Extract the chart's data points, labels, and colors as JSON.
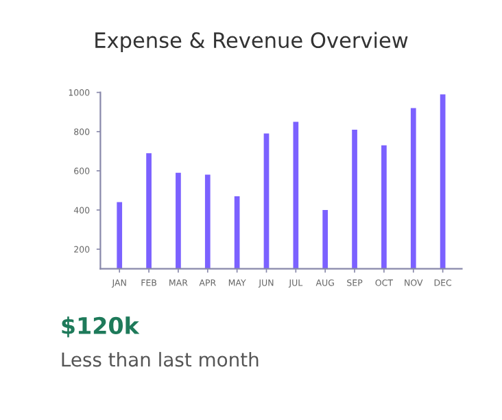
{
  "chart_data": {
    "type": "bar",
    "title": "Expense & Revenue Overview",
    "categories": [
      "JAN",
      "FEB",
      "MAR",
      "APR",
      "MAY",
      "JUN",
      "JUL",
      "AUG",
      "SEP",
      "OCT",
      "NOV",
      "DEC"
    ],
    "values": [
      440,
      690,
      590,
      580,
      470,
      790,
      850,
      400,
      810,
      730,
      920,
      990
    ],
    "color": "#7b61ff",
    "ylim": [
      100,
      1000
    ],
    "yticks": [
      200,
      400,
      600,
      800,
      1000
    ],
    "grid": false,
    "annotations": [
      "$120k",
      "Less than last month"
    ]
  }
}
